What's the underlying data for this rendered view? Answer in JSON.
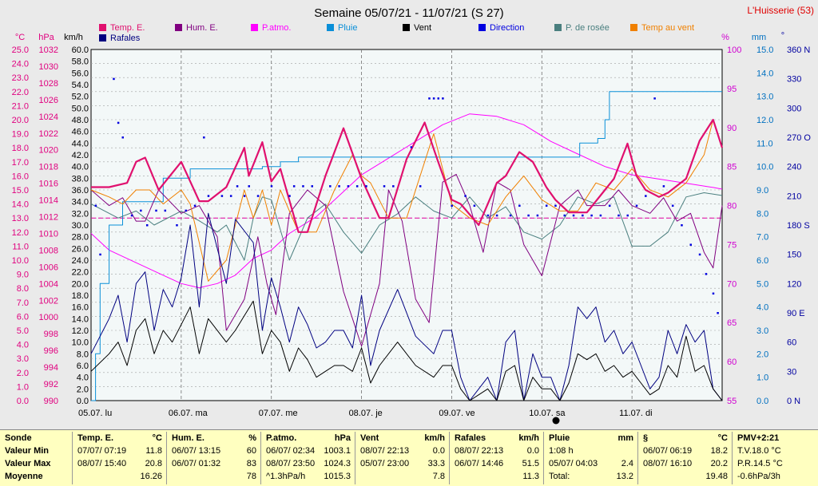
{
  "chart_data": {
    "type": "line",
    "title": "Semaine 05/07/21 - 11/07/21 (S 27)",
    "location": "L'Huisserie (53)",
    "x": {
      "categories": [
        "05.07. lu",
        "06.07. ma",
        "07.07. me",
        "08.07. je",
        "09.07. ve",
        "10.07. sa",
        "11.07. di"
      ],
      "range_days": [
        0,
        7.0
      ]
    },
    "axes": {
      "temp_c": {
        "unit": "°C",
        "min": 0.0,
        "max": 25.0,
        "step": 1.0,
        "color": "#e0007f"
      },
      "pressure_hpa": {
        "unit": "hPa",
        "min": 990,
        "max": 1032,
        "step": 2,
        "color": "#e0007f"
      },
      "speed_kmh": {
        "unit": "km/h",
        "min": 0.0,
        "max": 60.0,
        "step": 2.0,
        "color": "#000000"
      },
      "humidity_pct": {
        "unit": "%",
        "min": 55,
        "max": 100,
        "step": 5,
        "color": "#d000d0"
      },
      "rain_mm": {
        "unit": "mm",
        "min": 0.0,
        "max": 15.0,
        "step": 1.0,
        "color": "#0070c0"
      },
      "direction_deg": {
        "unit": "°",
        "labels": [
          "0 N",
          "30",
          "60",
          "90 E",
          "120",
          "150",
          "180 S",
          "210",
          "240",
          "270 O",
          "300",
          "330",
          "360 N"
        ],
        "color": "#0000a0"
      }
    },
    "legend": [
      {
        "name": "Temp. E.",
        "color": "#e0106e"
      },
      {
        "name": "Hum. E.",
        "color": "#800080"
      },
      {
        "name": "P.atmo.",
        "color": "#ff00ff"
      },
      {
        "name": "Pluie",
        "color": "#0a8fd8"
      },
      {
        "name": "Vent",
        "color": "#000000"
      },
      {
        "name": "Direction",
        "color": "#0000e0"
      },
      {
        "name": "P. de rosée",
        "color": "#4a7f7f"
      },
      {
        "name": "Temp au vent",
        "color": "#f08000"
      },
      {
        "name": "Rafales",
        "color": "#000080"
      }
    ],
    "series": [
      {
        "name": "Temp. E.",
        "axis": "temp_c",
        "color": "#e0106e",
        "width": 2.2,
        "x": [
          0,
          0.2,
          0.4,
          0.5,
          0.6,
          0.75,
          0.85,
          1.0,
          1.2,
          1.3,
          1.5,
          1.7,
          1.75,
          1.9,
          2.0,
          2.1,
          2.3,
          2.4,
          2.6,
          2.8,
          3.0,
          3.2,
          3.3,
          3.5,
          3.7,
          3.85,
          4.0,
          4.1,
          4.3,
          4.5,
          4.6,
          4.75,
          4.9,
          5.05,
          5.15,
          5.3,
          5.5,
          5.7,
          5.8,
          5.95,
          6.05,
          6.15,
          6.3,
          6.4,
          6.6,
          6.75,
          6.9,
          7.0
        ],
        "y": [
          15.2,
          15.2,
          15.5,
          17.0,
          17.3,
          15.0,
          15.8,
          17.0,
          14.2,
          14.2,
          15.2,
          18.0,
          16.0,
          18.4,
          15.6,
          16.5,
          12.0,
          12.0,
          16.0,
          19.4,
          15.8,
          13.0,
          13.0,
          17.2,
          19.8,
          17.0,
          14.3,
          14.0,
          12.5,
          15.5,
          16.0,
          17.7,
          17.0,
          15.2,
          14.3,
          13.4,
          13.4,
          15.0,
          15.8,
          18.3,
          16.0,
          15.0,
          14.5,
          14.8,
          15.8,
          18.5,
          20.0,
          18.0
        ]
      },
      {
        "name": "Hum. E.",
        "axis": "humidity_pct",
        "color": "#800080",
        "width": 1,
        "x": [
          0,
          0.2,
          0.35,
          0.5,
          0.6,
          0.75,
          1.0,
          1.2,
          1.4,
          1.5,
          1.7,
          1.85,
          1.95,
          2.05,
          2.2,
          2.4,
          2.6,
          2.8,
          3.0,
          3.2,
          3.3,
          3.45,
          3.6,
          3.75,
          3.9,
          4.05,
          4.2,
          4.35,
          4.5,
          4.65,
          4.8,
          5.0,
          5.2,
          5.4,
          5.5,
          5.7,
          5.85,
          6.0,
          6.2,
          6.35,
          6.5,
          6.65,
          6.8,
          6.9,
          7.0
        ],
        "y": [
          82,
          80,
          81,
          78,
          78,
          82,
          79,
          80,
          76,
          64,
          68,
          76,
          70,
          66,
          79,
          82,
          80,
          69,
          62,
          70,
          82,
          78,
          68,
          65,
          83,
          84,
          80,
          74,
          83,
          82,
          75,
          71,
          80,
          82,
          80,
          80,
          82,
          80,
          79,
          81,
          78,
          79,
          74,
          72,
          80
        ]
      },
      {
        "name": "P.atmo.",
        "axis": "pressure_hpa",
        "color": "#ff00ff",
        "width": 1,
        "x": [
          0,
          0.2,
          0.4,
          0.6,
          0.8,
          1.0,
          1.2,
          1.4,
          1.6,
          1.8,
          2.0,
          2.2,
          2.5,
          2.8,
          3.0,
          3.3,
          3.6,
          3.9,
          4.2,
          4.5,
          4.8,
          5.1,
          5.4,
          5.7,
          6.0,
          6.3,
          6.6,
          6.9,
          7.0
        ],
        "y": [
          1010,
          1008,
          1007,
          1006,
          1005,
          1004,
          1003.5,
          1004,
          1005,
          1007,
          1008,
          1010,
          1012,
          1015,
          1017,
          1019,
          1021,
          1023,
          1024.3,
          1024,
          1023,
          1021,
          1019.5,
          1018,
          1017,
          1016.5,
          1016,
          1015.5,
          1015.3
        ]
      },
      {
        "name": "Pluie",
        "axis": "rain_mm",
        "color": "#0a8fd8",
        "width": 1,
        "step": true,
        "x": [
          0,
          0.05,
          0.1,
          0.2,
          0.35,
          0.5,
          0.62,
          0.8,
          1.0,
          1.1,
          1.6,
          1.9,
          2.1,
          2.3,
          3.2,
          3.5,
          4.1,
          4.7,
          5.35,
          5.42,
          5.5,
          5.62,
          5.7,
          5.75,
          7.0
        ],
        "y": [
          0,
          2.0,
          5.0,
          7.5,
          8.5,
          8.5,
          8.5,
          9.5,
          9.5,
          9.9,
          9.9,
          10.0,
          10.2,
          10.4,
          10.4,
          10.4,
          10.4,
          10.4,
          10.4,
          11.0,
          11.0,
          11.2,
          12.0,
          13.2,
          13.2
        ]
      },
      {
        "name": "Vent",
        "axis": "speed_kmh",
        "color": "#000000",
        "width": 1,
        "x": [
          0,
          0.2,
          0.3,
          0.4,
          0.5,
          0.6,
          0.7,
          0.8,
          0.9,
          1.0,
          1.1,
          1.2,
          1.3,
          1.5,
          1.6,
          1.8,
          1.9,
          2.0,
          2.1,
          2.2,
          2.3,
          2.4,
          2.5,
          2.6,
          2.7,
          2.8,
          2.9,
          3.0,
          3.1,
          3.2,
          3.4,
          3.6,
          3.8,
          3.9,
          4.0,
          4.1,
          4.2,
          4.3,
          4.4,
          4.5,
          4.6,
          4.7,
          4.8,
          4.9,
          5.0,
          5.1,
          5.2,
          5.3,
          5.4,
          5.5,
          5.6,
          5.7,
          5.8,
          5.9,
          6.0,
          6.1,
          6.2,
          6.3,
          6.4,
          6.5,
          6.6,
          6.7,
          6.8,
          6.9,
          7.0
        ],
        "y": [
          5,
          8,
          10,
          6,
          12,
          14,
          8,
          12,
          10,
          13,
          16,
          8,
          14,
          10,
          12,
          17,
          8,
          12,
          10,
          5,
          9,
          7,
          4,
          5,
          6,
          6,
          5,
          9,
          3,
          6,
          10,
          6,
          4,
          6,
          6,
          2,
          0,
          1,
          2,
          0,
          5,
          6,
          0,
          4,
          2,
          2,
          0,
          3,
          8,
          7,
          8,
          5,
          6,
          4,
          5,
          3,
          1,
          2,
          6,
          4,
          11,
          5,
          6,
          2,
          0
        ]
      },
      {
        "name": "Rafales",
        "axis": "speed_kmh",
        "color": "#000080",
        "width": 1,
        "x": [
          0,
          0.2,
          0.3,
          0.4,
          0.5,
          0.6,
          0.7,
          0.8,
          0.9,
          1.0,
          1.1,
          1.2,
          1.3,
          1.5,
          1.6,
          1.8,
          1.9,
          2.0,
          2.1,
          2.2,
          2.3,
          2.4,
          2.5,
          2.6,
          2.7,
          2.8,
          2.9,
          3.0,
          3.1,
          3.2,
          3.4,
          3.6,
          3.8,
          3.9,
          4.0,
          4.1,
          4.2,
          4.3,
          4.4,
          4.5,
          4.6,
          4.7,
          4.8,
          4.9,
          5.0,
          5.1,
          5.2,
          5.3,
          5.4,
          5.5,
          5.6,
          5.7,
          5.8,
          5.9,
          6.0,
          6.1,
          6.2,
          6.3,
          6.4,
          6.5,
          6.6,
          6.7,
          6.8,
          6.9,
          7.0
        ],
        "y": [
          8,
          14,
          18,
          10,
          20,
          22,
          12,
          19,
          16,
          21,
          30,
          16,
          32,
          20,
          31,
          27,
          12,
          21,
          16,
          10,
          16,
          13,
          9,
          10,
          12,
          12,
          9,
          18,
          6,
          12,
          19,
          11,
          8,
          12,
          12,
          4,
          0,
          2,
          4,
          0,
          10,
          12,
          0,
          8,
          4,
          4,
          0,
          6,
          16,
          14,
          16,
          10,
          12,
          8,
          10,
          6,
          2,
          4,
          12,
          8,
          13,
          10,
          12,
          2,
          0
        ]
      },
      {
        "name": "P. de rosée",
        "axis": "temp_c",
        "color": "#4a7f7f",
        "width": 1,
        "x": [
          0,
          0.3,
          0.5,
          0.7,
          1.0,
          1.2,
          1.4,
          1.5,
          1.7,
          1.8,
          1.9,
          2.0,
          2.2,
          2.4,
          2.6,
          2.8,
          3.0,
          3.2,
          3.4,
          3.6,
          3.8,
          4.0,
          4.2,
          4.4,
          4.6,
          4.8,
          5.0,
          5.2,
          5.4,
          5.6,
          5.8,
          6.0,
          6.2,
          6.4,
          6.6,
          6.8,
          7.0
        ],
        "y": [
          14,
          13,
          13.5,
          12.5,
          13.5,
          12.8,
          12.0,
          12.5,
          10.0,
          13.0,
          14.5,
          14.3,
          10.0,
          13.0,
          14.0,
          12.0,
          10.5,
          12.5,
          13.3,
          14.5,
          13.5,
          13.0,
          14.5,
          13.0,
          13.8,
          12.0,
          11.5,
          12.5,
          14.5,
          14.0,
          14.5,
          11.0,
          11.0,
          12.0,
          14.5,
          14.8,
          14.6
        ]
      },
      {
        "name": "Temp au vent",
        "axis": "temp_c",
        "color": "#f08000",
        "width": 1,
        "x": [
          0,
          0.2,
          0.35,
          0.5,
          0.65,
          0.8,
          1.0,
          1.1,
          1.3,
          1.5,
          1.7,
          1.8,
          1.9,
          2.0,
          2.1,
          2.3,
          2.5,
          2.7,
          2.9,
          3.0,
          3.1,
          3.3,
          3.5,
          3.7,
          3.8,
          4.0,
          4.2,
          4.4,
          4.6,
          4.8,
          5.0,
          5.2,
          5.4,
          5.6,
          5.8,
          6.0,
          6.2,
          6.4,
          6.6,
          6.8,
          6.9,
          7.0
        ],
        "y": [
          15,
          14.5,
          14,
          15,
          15,
          14,
          15,
          14,
          8.5,
          10,
          15,
          13,
          15,
          12.5,
          15,
          12,
          12,
          15,
          17.5,
          16,
          15.5,
          13,
          13,
          17,
          19,
          14,
          13,
          12.5,
          14.5,
          16,
          14.3,
          13.5,
          13.5,
          15.5,
          15,
          16.5,
          15,
          14.5,
          15.5,
          17.5,
          20,
          18
        ]
      }
    ],
    "direction_points": {
      "name": "Direction",
      "color": "#0000e0",
      "x": [
        0.05,
        0.1,
        0.25,
        0.3,
        0.35,
        0.45,
        0.55,
        0.62,
        0.72,
        0.82,
        0.95,
        1.05,
        1.15,
        1.25,
        1.3,
        1.45,
        1.55,
        1.62,
        1.7,
        1.75,
        1.85,
        2.0,
        2.2,
        2.25,
        2.35,
        2.45,
        2.65,
        2.75,
        2.85,
        2.95,
        3.05,
        3.25,
        3.35,
        3.55,
        3.65,
        3.75,
        3.8,
        3.85,
        3.9,
        4.0,
        4.15,
        4.25,
        4.4,
        4.5,
        4.65,
        4.75,
        4.85,
        4.95,
        5.05,
        5.15,
        5.25,
        5.35,
        5.45,
        5.55,
        5.65,
        5.75,
        5.85,
        5.95,
        6.05,
        6.15,
        6.25,
        6.35,
        6.45,
        6.55,
        6.65,
        6.75,
        6.82,
        6.9,
        6.95
      ],
      "deg": [
        200,
        150,
        330,
        285,
        270,
        190,
        195,
        180,
        195,
        195,
        180,
        195,
        200,
        270,
        210,
        210,
        210,
        220,
        210,
        220,
        210,
        220,
        210,
        220,
        220,
        220,
        220,
        220,
        220,
        220,
        220,
        220,
        220,
        260,
        220,
        310,
        310,
        310,
        310,
        200,
        210,
        200,
        190,
        190,
        190,
        200,
        190,
        190,
        200,
        200,
        190,
        190,
        190,
        190,
        190,
        200,
        190,
        190,
        200,
        210,
        310,
        220,
        200,
        180,
        160,
        150,
        130,
        110,
        90
      ]
    }
  },
  "stats": {
    "cols": [
      {
        "h1": "Sonde",
        "h2": "",
        "rows": [
          [
            "Valeur Min",
            ""
          ],
          [
            "Valeur Max",
            ""
          ],
          [
            "Moyenne",
            ""
          ]
        ]
      },
      {
        "h1": "Temp. E.",
        "h2": "°C",
        "rows": [
          [
            "07/07/ 07:19",
            "11.8"
          ],
          [
            "08/07/ 15:40",
            "20.8"
          ],
          [
            "",
            "16.26"
          ]
        ]
      },
      {
        "h1": "Hum. E.",
        "h2": "%",
        "rows": [
          [
            "06/07/ 13:15",
            "60"
          ],
          [
            "06/07/ 01:32",
            "83"
          ],
          [
            "",
            "78"
          ]
        ]
      },
      {
        "h1": "P.atmo.",
        "h2": "hPa",
        "rows": [
          [
            "06/07/ 02:34",
            "1003.1"
          ],
          [
            "08/07/ 23:50",
            "1024.3"
          ],
          [
            "^1.3hPa/h",
            "1015.3"
          ]
        ]
      },
      {
        "h1": "Vent",
        "h2": "km/h",
        "rows": [
          [
            "08/07/ 22:13",
            "0.0"
          ],
          [
            "05/07/ 23:00",
            "33.3"
          ],
          [
            "",
            "7.8"
          ]
        ]
      },
      {
        "h1": "Rafales",
        "h2": "km/h",
        "rows": [
          [
            "08/07/ 22:13",
            "0.0"
          ],
          [
            "06/07/ 14:46",
            "51.5"
          ],
          [
            "",
            "11.3"
          ]
        ]
      },
      {
        "h1": "Pluie",
        "h2": "mm",
        "rows": [
          [
            "1:08 h",
            ""
          ],
          [
            "05/07/ 04:03",
            "2.4"
          ],
          [
            "Total:",
            "13.2"
          ]
        ]
      },
      {
        "h1": "§",
        "h2": "°C",
        "rows": [
          [
            "06/07/ 06:19",
            "18.2"
          ],
          [
            "08/07/ 16:10",
            "20.2"
          ],
          [
            "",
            "19.48"
          ]
        ]
      },
      {
        "h1": "PMV+2:21",
        "h2": "",
        "rows": [
          [
            "T.V.18.0 °C",
            ""
          ],
          [
            "P.R.14.5 °C",
            ""
          ],
          [
            "-0.6hPa/3h",
            ""
          ]
        ]
      }
    ]
  }
}
